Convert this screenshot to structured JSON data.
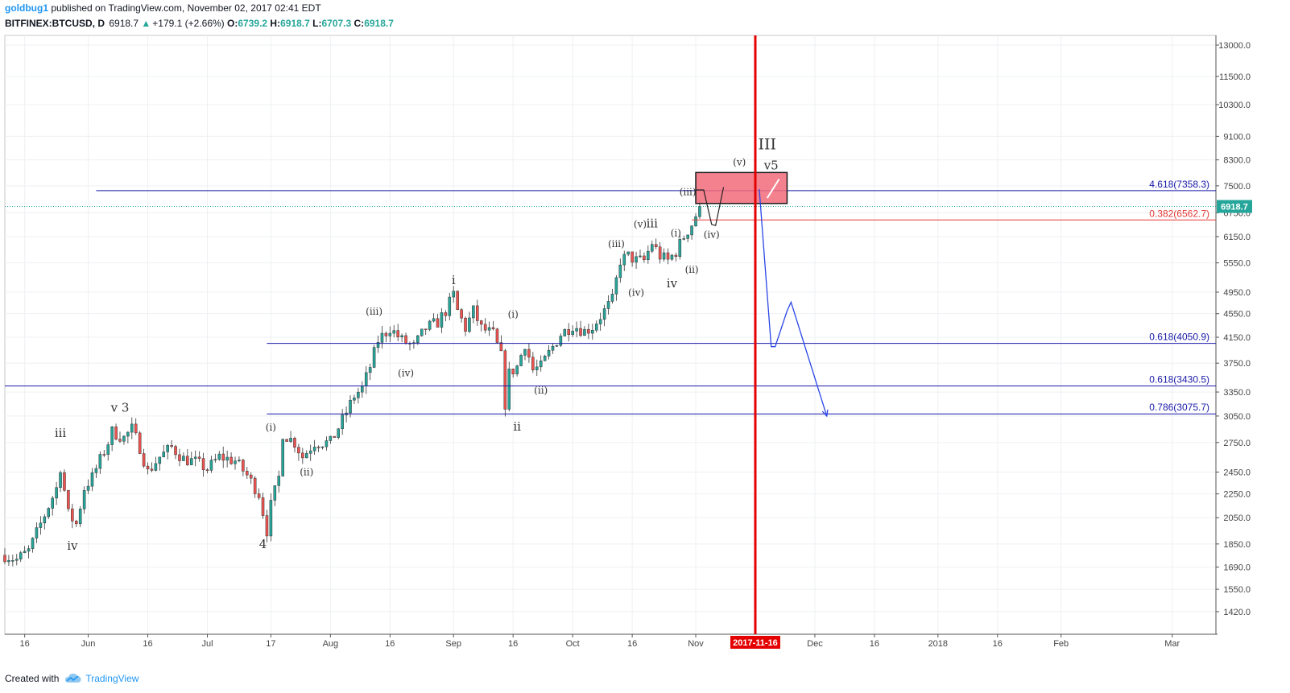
{
  "header": {
    "author": "goldbug1",
    "published": "published on TradingView.com, November 02, 2017 02:41 EDT",
    "symbol": "BITFINEX:BTCUSD, D",
    "last": "6918.7",
    "change": "+179.1 (+2.66%)",
    "open_label": "O:",
    "open": "6739.2",
    "high_label": "H:",
    "high": "6918.7",
    "low_label": "L:",
    "low": "6707.3",
    "close_label": "C:",
    "close": "6918.7"
  },
  "footer": {
    "created_with": "Created with",
    "brand": "TradingView"
  },
  "colors": {
    "up": "#26a69a",
    "down": "#ef5350",
    "level_blue": "#1a1aa8",
    "level_red": "#e53935",
    "marker": "#e50000",
    "path": "#2a46e6"
  },
  "chart_data": {
    "type": "candlestick",
    "yscale": "log",
    "ylim": [
      1300,
      13500
    ],
    "y_ticks": [
      1420,
      1550,
      1690,
      1850,
      2050,
      2250,
      2450,
      2750,
      3050,
      3350,
      3750,
      4150,
      4550,
      4950,
      5550,
      6150,
      6750,
      7500,
      8300,
      9100,
      10300,
      11500,
      13000
    ],
    "y_tick_labels": [
      "1420.0",
      "1550.0",
      "1690.0",
      "1850.0",
      "2050.0",
      "2250.0",
      "2450.0",
      "2750.0",
      "3050.0",
      "3350.0",
      "3750.0",
      "4150.0",
      "4550.0",
      "4950.0",
      "5550.0",
      "6150.0",
      "6750.0",
      "7500.0",
      "8300.0",
      "9100.0",
      "10300.0",
      "11500.0",
      "13000.0"
    ],
    "x_range": [
      "2017-05-11",
      "2018-03-12"
    ],
    "x_ticks": [
      {
        "date": "2017-05-16",
        "label": "16"
      },
      {
        "date": "2017-06-01",
        "label": "Jun"
      },
      {
        "date": "2017-06-16",
        "label": "16"
      },
      {
        "date": "2017-07-01",
        "label": "Jul"
      },
      {
        "date": "2017-07-17",
        "label": "17"
      },
      {
        "date": "2017-08-01",
        "label": "Aug"
      },
      {
        "date": "2017-08-16",
        "label": "16"
      },
      {
        "date": "2017-09-01",
        "label": "Sep"
      },
      {
        "date": "2017-09-16",
        "label": "16"
      },
      {
        "date": "2017-10-01",
        "label": "Oct"
      },
      {
        "date": "2017-10-16",
        "label": "16"
      },
      {
        "date": "2017-11-01",
        "label": "Nov"
      },
      {
        "date": "2017-12-01",
        "label": "Dec"
      },
      {
        "date": "2017-12-16",
        "label": "16"
      },
      {
        "date": "2018-01-01",
        "label": "2018"
      },
      {
        "date": "2018-01-16",
        "label": "16"
      },
      {
        "date": "2018-02-01",
        "label": "Feb"
      },
      {
        "date": "2018-03-01",
        "label": "Mar"
      }
    ],
    "price_anchors": [
      [
        "2017-05-11",
        1770
      ],
      [
        "2017-05-14",
        1740
      ],
      [
        "2017-05-17",
        1800
      ],
      [
        "2017-05-20",
        2000
      ],
      [
        "2017-05-24",
        2300
      ],
      [
        "2017-05-25",
        2500
      ],
      [
        "2017-05-27",
        2080
      ],
      [
        "2017-05-29",
        2000
      ],
      [
        "2017-05-31",
        2300
      ],
      [
        "2017-06-02",
        2400
      ],
      [
        "2017-06-06",
        2750
      ],
      [
        "2017-06-07",
        2870
      ],
      [
        "2017-06-10",
        2800
      ],
      [
        "2017-06-12",
        2900
      ],
      [
        "2017-06-14",
        2700
      ],
      [
        "2017-06-16",
        2450
      ],
      [
        "2017-06-19",
        2600
      ],
      [
        "2017-06-22",
        2700
      ],
      [
        "2017-06-25",
        2580
      ],
      [
        "2017-06-28",
        2550
      ],
      [
        "2017-07-01",
        2480
      ],
      [
        "2017-07-04",
        2600
      ],
      [
        "2017-07-08",
        2560
      ],
      [
        "2017-07-11",
        2420
      ],
      [
        "2017-07-14",
        2250
      ],
      [
        "2017-07-16",
        1950
      ],
      [
        "2017-07-17",
        2150
      ],
      [
        "2017-07-19",
        2400
      ],
      [
        "2017-07-20",
        2850
      ],
      [
        "2017-07-23",
        2750
      ],
      [
        "2017-07-25",
        2600
      ],
      [
        "2017-07-28",
        2750
      ],
      [
        "2017-08-01",
        2750
      ],
      [
        "2017-08-04",
        3000
      ],
      [
        "2017-08-07",
        3300
      ],
      [
        "2017-08-09",
        3400
      ],
      [
        "2017-08-11",
        3700
      ],
      [
        "2017-08-13",
        4100
      ],
      [
        "2017-08-16",
        4300
      ],
      [
        "2017-08-19",
        4100
      ],
      [
        "2017-08-22",
        4000
      ],
      [
        "2017-08-25",
        4300
      ],
      [
        "2017-08-28",
        4400
      ],
      [
        "2017-08-30",
        4600
      ],
      [
        "2017-09-01",
        4900
      ],
      [
        "2017-09-02",
        4600
      ],
      [
        "2017-09-04",
        4300
      ],
      [
        "2017-09-06",
        4600
      ],
      [
        "2017-09-08",
        4300
      ],
      [
        "2017-09-11",
        4200
      ],
      [
        "2017-09-13",
        3850
      ],
      [
        "2017-09-14",
        3200
      ],
      [
        "2017-09-15",
        3600
      ],
      [
        "2017-09-17",
        3700
      ],
      [
        "2017-09-19",
        4050
      ],
      [
        "2017-09-21",
        3650
      ],
      [
        "2017-09-23",
        3700
      ],
      [
        "2017-09-25",
        3900
      ],
      [
        "2017-09-28",
        4200
      ],
      [
        "2017-10-01",
        4350
      ],
      [
        "2017-10-04",
        4250
      ],
      [
        "2017-10-06",
        4320
      ],
      [
        "2017-10-09",
        4600
      ],
      [
        "2017-10-11",
        4800
      ],
      [
        "2017-10-13",
        5600
      ],
      [
        "2017-10-15",
        5700
      ],
      [
        "2017-10-17",
        5600
      ],
      [
        "2017-10-19",
        5600
      ],
      [
        "2017-10-21",
        6000
      ],
      [
        "2017-10-23",
        5700
      ],
      [
        "2017-10-25",
        5600
      ],
      [
        "2017-10-27",
        5800
      ],
      [
        "2017-10-29",
        6150
      ],
      [
        "2017-10-31",
        6450
      ],
      [
        "2017-11-02",
        6918.7
      ]
    ],
    "levels": [
      {
        "label": "4.618(7358.3)",
        "value": 7358.3,
        "color": "#1a1aa8",
        "from": "2017-06-03"
      },
      {
        "label": "0.382(6562.7)",
        "value": 6562.7,
        "color": "#e53935",
        "from": "2017-10-31"
      },
      {
        "label": "0.618(4050.9)",
        "value": 4050.9,
        "color": "#1a1aa8",
        "from": "2017-07-16"
      },
      {
        "label": "0.618(3430.5)",
        "value": 3430.5,
        "color": "#1a1aa8",
        "from": "2017-05-11"
      },
      {
        "label": "0.786(3075.7)",
        "value": 3075.7,
        "color": "#1a1aa8",
        "from": "2017-07-16"
      }
    ],
    "last_price": {
      "value": 6918.7,
      "label": "6918.7"
    },
    "vertical_marker": {
      "date": "2017-11-16",
      "label": "2017-11-16",
      "color": "#e50000"
    },
    "target_box": {
      "x0": "2017-11-01",
      "x1": "2017-11-24",
      "y0": 7000,
      "y1": 7900,
      "color": "#f26b7a"
    },
    "projected_path": [
      [
        "2017-11-17",
        7400
      ],
      [
        "2017-11-20",
        4000
      ],
      [
        "2017-11-21",
        4000
      ],
      [
        "2017-11-24",
        4600
      ],
      [
        "2017-11-25",
        4760
      ],
      [
        "2017-12-04",
        3050
      ]
    ],
    "small_path": [
      [
        "2017-11-01",
        7380
      ],
      [
        "2017-11-03",
        7380
      ],
      [
        "2017-11-05",
        6450
      ],
      [
        "2017-11-06",
        6420
      ],
      [
        "2017-11-08",
        7460
      ]
    ],
    "wave_labels": [
      {
        "t": "iii",
        "date": "2017-05-25",
        "v": 2810,
        "size": 15
      },
      {
        "t": "iv",
        "date": "2017-05-28",
        "v": 1810,
        "size": 15
      },
      {
        "t": "v 3",
        "date": "2017-06-09",
        "v": 3100,
        "size": 15
      },
      {
        "t": "4",
        "date": "2017-07-15",
        "v": 1820,
        "size": 15
      },
      {
        "t": "(i)",
        "date": "2017-07-17",
        "v": 2880,
        "size": 12
      },
      {
        "t": "(ii)",
        "date": "2017-07-26",
        "v": 2420,
        "size": 12
      },
      {
        "t": "(iii)",
        "date": "2017-08-12",
        "v": 4530,
        "size": 12
      },
      {
        "t": "(iv)",
        "date": "2017-08-20",
        "v": 3560,
        "size": 12
      },
      {
        "t": "i",
        "date": "2017-09-01",
        "v": 5110,
        "size": 15
      },
      {
        "t": "(i)",
        "date": "2017-09-16",
        "v": 4480,
        "size": 12
      },
      {
        "t": "(ii)",
        "date": "2017-09-23",
        "v": 3330,
        "size": 12
      },
      {
        "t": "ii",
        "date": "2017-09-17",
        "v": 2880,
        "size": 15
      },
      {
        "t": "(iii)",
        "date": "2017-10-12",
        "v": 5900,
        "size": 12
      },
      {
        "t": "(iv)",
        "date": "2017-10-17",
        "v": 4880,
        "size": 12
      },
      {
        "t": "(v)",
        "date": "2017-10-18",
        "v": 6380,
        "size": 12
      },
      {
        "t": "iii",
        "date": "2017-10-21",
        "v": 6380,
        "size": 15
      },
      {
        "t": "(i)",
        "date": "2017-10-27",
        "v": 6160,
        "size": 12
      },
      {
        "t": "(ii)",
        "date": "2017-10-31",
        "v": 5340,
        "size": 12
      },
      {
        "t": "iv",
        "date": "2017-10-26",
        "v": 5040,
        "size": 15
      },
      {
        "t": "(iii)",
        "date": "2017-10-30",
        "v": 7230,
        "size": 12
      },
      {
        "t": "(iv)",
        "date": "2017-11-05",
        "v": 6120,
        "size": 12
      },
      {
        "t": "(v)",
        "date": "2017-11-12",
        "v": 8120,
        "size": 12
      },
      {
        "t": "v5",
        "date": "2017-11-20",
        "v": 8000,
        "size": 15
      },
      {
        "t": "III",
        "date": "2017-11-19",
        "v": 8650,
        "size": 19
      }
    ]
  }
}
